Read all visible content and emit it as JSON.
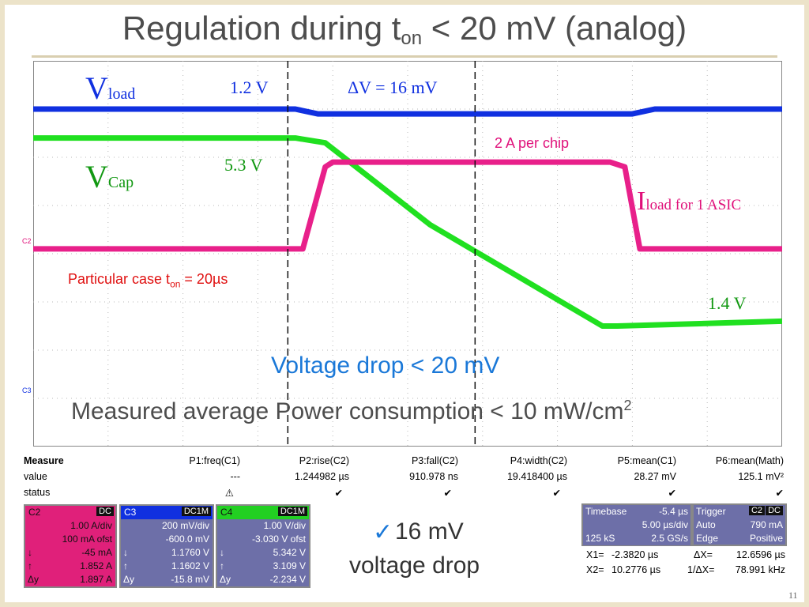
{
  "title": {
    "main": "Regulation during t",
    "sub": "on",
    "rest": "  < 20 mV (analog)"
  },
  "annotations": {
    "vload_main": "V",
    "vload_sub": "load",
    "vcap_main": "V",
    "vcap_sub": "Cap",
    "iload_main": "I",
    "iload_sub": "load for 1 ASIC",
    "v_1_2": "1.2 V",
    "delta_v": "ΔV = 16 mV",
    "v_5_3": "5.3 V",
    "amp_per_chip": "2 A per chip",
    "v_1_4": "1.4 V",
    "particular_case_a": "Particular case t",
    "particular_case_sub": "on",
    "particular_case_b": " = 20µs",
    "voltage_drop": "Voltage drop < 20 mV",
    "power_a": "Measured average Power consumption < 10 mW/cm",
    "power_sup": "2",
    "check_mark": "✓",
    "summary_1": " 16 mV",
    "summary_2": "voltage drop",
    "page_number": "11",
    "c2_marker": "C2",
    "c3_marker": "C3"
  },
  "measure": {
    "headers": [
      "Measure",
      "P1:freq(C1)",
      "P2:rise(C2)",
      "P3:fall(C2)",
      "P4:width(C2)",
      "P5:mean(C1)",
      "P6:mean(Math)"
    ],
    "values": [
      "value",
      "---",
      "1.244982 µs",
      "910.978 ns",
      "19.418400 µs",
      "28.27 mV",
      "125.1 mV²"
    ],
    "status": [
      "status",
      "⚠",
      "✔",
      "✔",
      "✔",
      "✔",
      "✔"
    ]
  },
  "channels": [
    {
      "name": "C2",
      "coupling": "DC",
      "lines": [
        [
          "",
          "1.00 A/div"
        ],
        [
          "",
          "100 mA ofst"
        ],
        [
          "↓",
          "-45 mA"
        ],
        [
          "↑",
          "1.852 A"
        ],
        [
          "Δy",
          "1.897 A"
        ]
      ],
      "bg": "#e0207a",
      "fg": "#111111"
    },
    {
      "name": "C3",
      "coupling": "DC1M",
      "lines": [
        [
          "",
          "200 mV/div"
        ],
        [
          "",
          "-600.0 mV"
        ],
        [
          "↓",
          "1.1760 V"
        ],
        [
          "↑",
          "1.1602 V"
        ],
        [
          "Δy",
          "-15.8 mV"
        ]
      ],
      "bg": "#6d6fa8",
      "fg": "#ffffff"
    },
    {
      "name": "C4",
      "coupling": "DC1M",
      "lines": [
        [
          "",
          "1.00 V/div"
        ],
        [
          "",
          "-3.030 V ofst"
        ],
        [
          "↓",
          "5.342 V"
        ],
        [
          "↑",
          "3.109 V"
        ],
        [
          "Δy",
          "-2.234 V"
        ]
      ],
      "bg": "#6d6fa8",
      "fg": "#ffffff"
    }
  ],
  "timebase": {
    "title": "Timebase",
    "offset": "-5.4 µs",
    "rows": [
      [
        "",
        "5.00 µs/div"
      ],
      [
        "125 kS",
        "2.5 GS/s"
      ]
    ]
  },
  "trigger": {
    "title": "Trigger",
    "badge1": "C2",
    "badge2": "DC",
    "rows": [
      [
        "Auto",
        "790 mA"
      ],
      [
        "Edge",
        "Positive"
      ]
    ]
  },
  "cursors": {
    "rows": [
      [
        "X1=",
        "-2.3820 µs",
        "ΔX=",
        "12.6596 µs"
      ],
      [
        "X2=",
        "10.2776 µs",
        "1/ΔX=",
        "78.991 kHz"
      ]
    ]
  },
  "chart_data": {
    "type": "line",
    "xlabel": "",
    "ylabel": "",
    "grid": true,
    "x_divisions": 10,
    "y_divisions": 8,
    "series": [
      {
        "name": "V_load",
        "color": "#1030e0",
        "x": [
          0,
          3.5,
          3.8,
          4.4,
          8.0,
          8.3,
          10
        ],
        "y": [
          7.0,
          7.0,
          6.9,
          6.9,
          6.9,
          7.0,
          7.0
        ]
      },
      {
        "name": "V_Cap",
        "color": "#20e020",
        "x": [
          0,
          3.5,
          3.9,
          5.3,
          7.6,
          7.8,
          10
        ],
        "y": [
          6.4,
          6.4,
          6.3,
          4.6,
          2.5,
          2.5,
          2.6
        ]
      },
      {
        "name": "I_load",
        "color": "#e8208a",
        "x": [
          0,
          3.6,
          3.9,
          4.0,
          7.7,
          7.9,
          8.1,
          10
        ],
        "y": [
          4.1,
          4.1,
          5.8,
          5.9,
          5.9,
          5.8,
          4.1,
          4.1
        ]
      }
    ],
    "cursor_x": [
      3.4,
      5.9
    ],
    "colors": {
      "load": "#1030e0",
      "cap": "#129812",
      "iload": "#e0107a",
      "drop": "#1a78d8",
      "title": "#4d4d4d"
    }
  }
}
